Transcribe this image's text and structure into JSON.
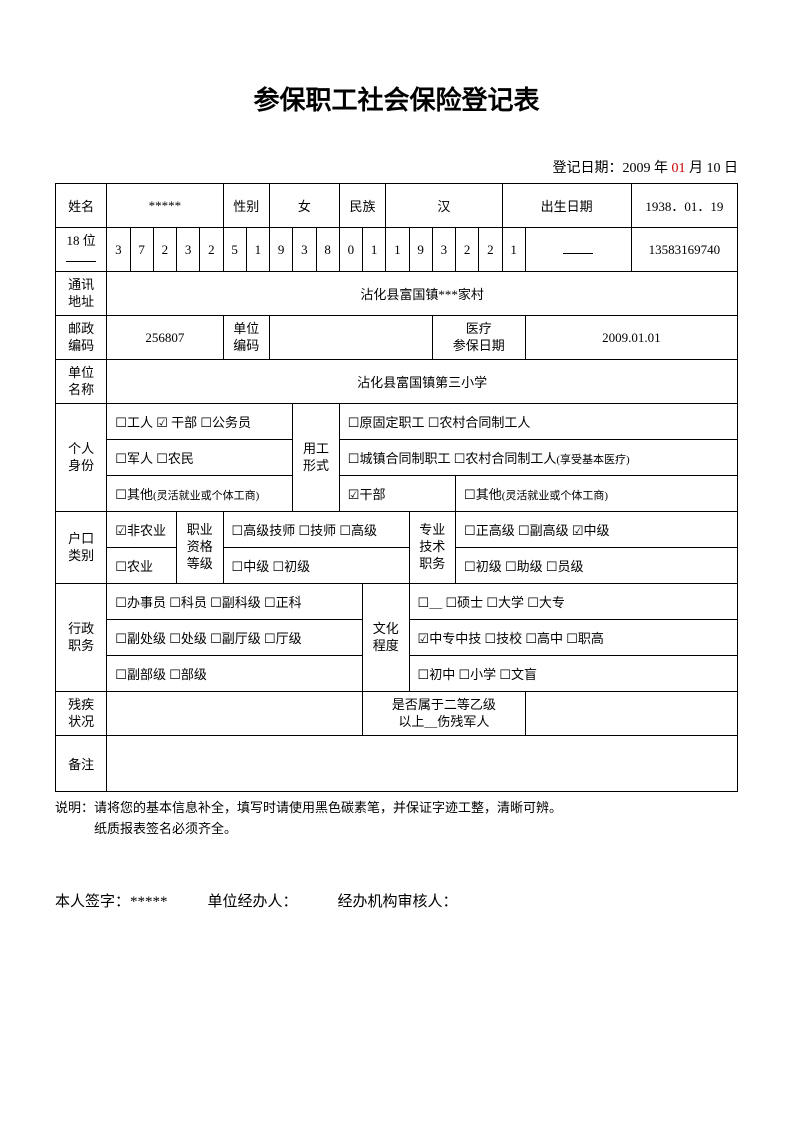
{
  "title": "参保职工社会保险登记表",
  "regDate": {
    "prefix": "登记日期：2009 年 ",
    "redMonth": "01",
    "suffix": " 月 10    日"
  },
  "row1": {
    "nameLabel": "姓名",
    "nameValue": "*****",
    "genderLabel": "性别",
    "genderValue": "女",
    "ethnicLabel": "民族",
    "ethnicValue": "汉",
    "dobLabel": "出生日期",
    "dobValue": "1938．01．19"
  },
  "idRow": {
    "label": "18 位",
    "digits": [
      "3",
      "7",
      "2",
      "3",
      "2",
      "5",
      "1",
      "9",
      "3",
      "8",
      "0",
      "1",
      "1",
      "9",
      "3",
      "2",
      "2",
      "1"
    ],
    "phone": "13583169740"
  },
  "address": {
    "label": "通讯\n地址",
    "value": "沾化县富国镇***家村"
  },
  "postal": {
    "postLabel": "邮政\n编码",
    "postValue": "256807",
    "unitCodeLabel": "单位\n编码",
    "unitCodeValue": "",
    "medLabel": "医疗\n参保日期",
    "medValue": "2009.01.01"
  },
  "unit": {
    "label": "单位\n名称",
    "value": "沾化县富国镇第三小学"
  },
  "identity": {
    "label": "个人\n身份",
    "line1": "☐工人 ☑ 干部  ☐公务员",
    "line2": "☐军人  ☐农民",
    "line3a": "☐其他",
    "line3b": "(灵活就业或个体工商)",
    "empLabel": "用工\n形式",
    "emp1": "☐原固定职工     ☐农村合同制工人",
    "emp2a": "☐城镇合同制职工 ☐农村合同制工人",
    "emp2b": "(享受基本医疗)",
    "emp3a": "☑干部",
    "emp3b": "☐其他",
    "emp3c": "(灵活就业或个体工商)"
  },
  "hukou": {
    "label": "户口\n类别",
    "opt1": "☑非农业",
    "opt2": "☐农业",
    "qualLabel": "职业\n资格\n等级",
    "qual1": "☐高级技师  ☐技师  ☐高级",
    "qual2": "☐中级      ☐初级",
    "techLabel": "专业\n技术\n职务",
    "tech1": "☐正高级  ☐副高级 ☑中级",
    "tech2": "☐初级   ☐助级    ☐员级"
  },
  "admin": {
    "label": "行政\n职务",
    "a1": "☐办事员 ☐科员  ☐副科级 ☐正科",
    "a2": "☐副处级 ☐处级  ☐副厅级 ☐厅级",
    "a3": "☐副部级 ☐部级",
    "eduLabel": "文化\n程度",
    "e1": "☐＿   ☐硕士 ☐大学 ☐大专",
    "e2": "☑中专中技 ☐技校 ☐高中 ☐职高",
    "e3": "☐初中    ☐小学  ☐文盲"
  },
  "disability": {
    "label": "残疾\n状况",
    "q": "是否属于二等乙级\n以上＿伤残军人"
  },
  "remark": {
    "label": "备注"
  },
  "notes": {
    "n1": "说明：请将您的基本信息补全，填写时请使用黑色碳素笔，并保证字迹工整，清晰可辨。",
    "n2": "　　　纸质报表签名必须齐全。"
  },
  "sign": {
    "s1": "本人签字：*****",
    "s2": "单位经办人：",
    "s3": "经办机构审核人："
  }
}
